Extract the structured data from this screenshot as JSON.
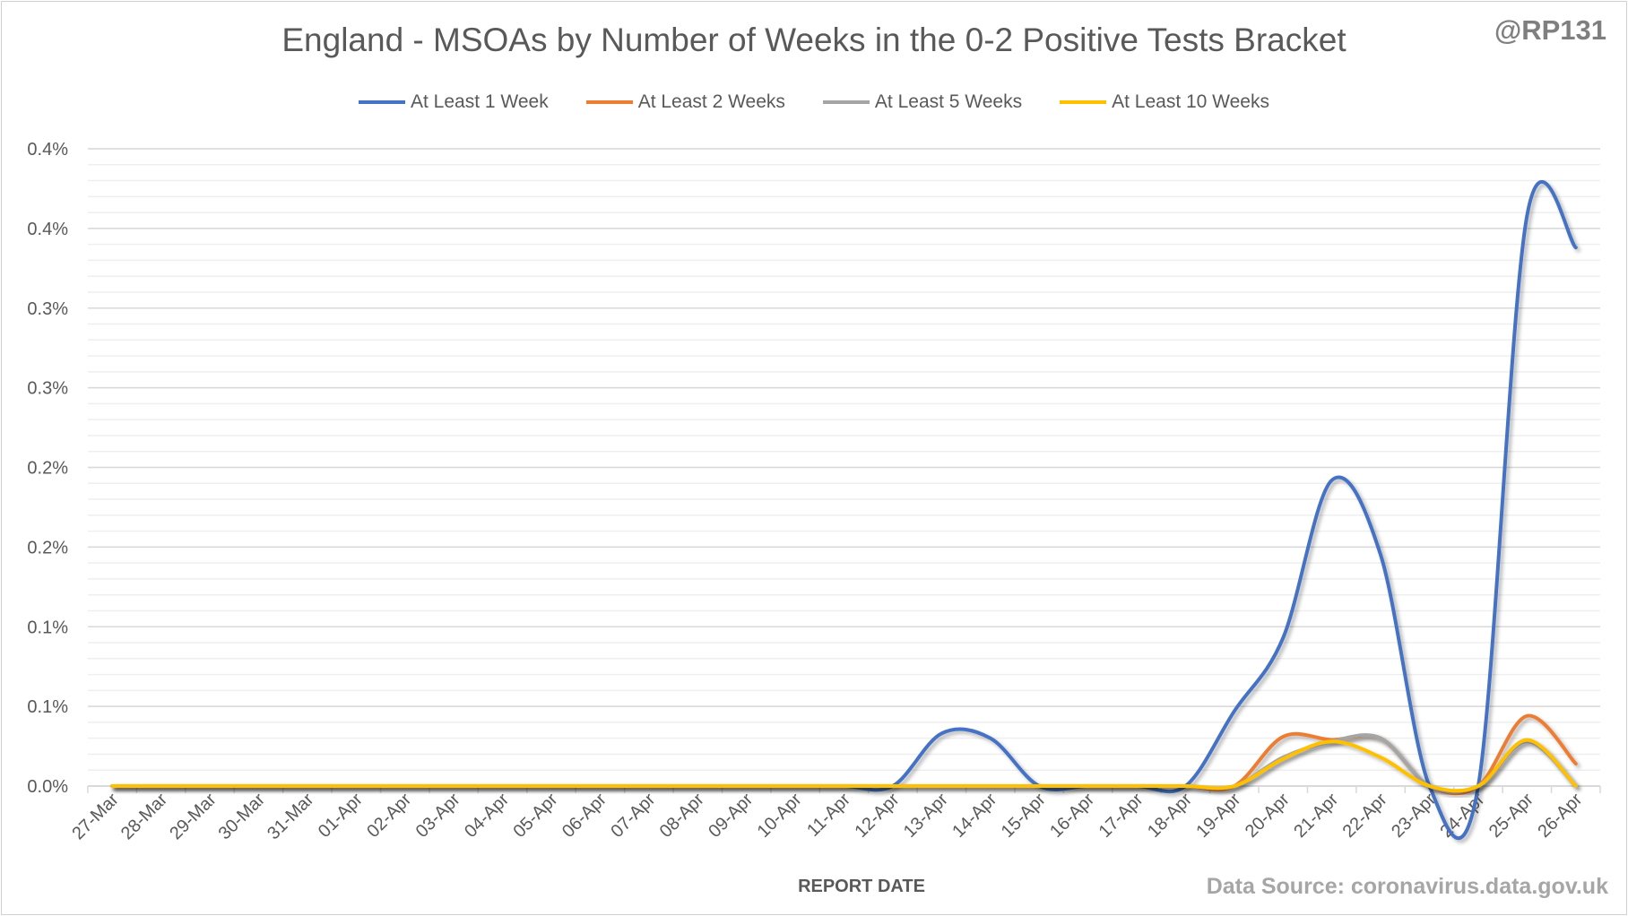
{
  "chart_data": {
    "type": "line",
    "title": "England - MSOAs by Number of Weeks in the 0-2 Positive Tests Bracket",
    "watermark": "@RP131",
    "xlabel": "REPORT DATE",
    "ylabel": "",
    "source": "Data Source: coronavirus.data.gov.uk",
    "ylim": [
      0,
      0.4
    ],
    "y_unit": "%",
    "y_ticks": [
      0,
      0.05,
      0.1,
      0.15,
      0.2,
      0.25,
      0.3,
      0.35,
      0.4
    ],
    "y_tick_labels": [
      "0.0%",
      "0.1%",
      "0.1%",
      "0.2%",
      "0.2%",
      "0.3%",
      "0.3%",
      "0.4%",
      "0.4%"
    ],
    "grid": "major and minor horizontal",
    "legend_position": "top",
    "smoothed": true,
    "categories": [
      "27-Mar",
      "28-Mar",
      "29-Mar",
      "30-Mar",
      "31-Mar",
      "01-Apr",
      "02-Apr",
      "03-Apr",
      "04-Apr",
      "05-Apr",
      "06-Apr",
      "07-Apr",
      "08-Apr",
      "09-Apr",
      "10-Apr",
      "11-Apr",
      "12-Apr",
      "13-Apr",
      "14-Apr",
      "15-Apr",
      "16-Apr",
      "17-Apr",
      "18-Apr",
      "19-Apr",
      "20-Apr",
      "21-Apr",
      "22-Apr",
      "23-Apr",
      "24-Apr",
      "25-Apr",
      "26-Apr"
    ],
    "series": [
      {
        "name": "At Least 1 Week",
        "color": "#4472c4",
        "values": [
          0,
          0,
          0,
          0,
          0,
          0,
          0,
          0,
          0,
          0,
          0,
          0,
          0,
          0,
          0,
          0,
          0,
          0.033,
          0.03,
          0,
          0,
          0,
          0,
          0.047,
          0.093,
          0.192,
          0.145,
          0,
          0,
          0.358,
          0.338
        ]
      },
      {
        "name": "At Least 2 Weeks",
        "color": "#ed7d31",
        "values": [
          0,
          0,
          0,
          0,
          0,
          0,
          0,
          0,
          0,
          0,
          0,
          0,
          0,
          0,
          0,
          0,
          0,
          0,
          0,
          0,
          0,
          0,
          0,
          0,
          0.031,
          0.029,
          0.03,
          0,
          0,
          0.044,
          0.014
        ]
      },
      {
        "name": "At Least 5 Weeks",
        "color": "#a5a5a5",
        "values": [
          0,
          0,
          0,
          0,
          0,
          0,
          0,
          0,
          0,
          0,
          0,
          0,
          0,
          0,
          0,
          0,
          0,
          0,
          0,
          0,
          0,
          0,
          0,
          0,
          0.018,
          0.028,
          0.03,
          0,
          0,
          0.028,
          0
        ]
      },
      {
        "name": "At Least 10 Weeks",
        "color": "#ffc000",
        "values": [
          0,
          0,
          0,
          0,
          0,
          0,
          0,
          0,
          0,
          0,
          0,
          0,
          0,
          0,
          0,
          0,
          0,
          0,
          0,
          0,
          0,
          0,
          0,
          0,
          0.017,
          0.028,
          0.018,
          0,
          0,
          0.029,
          0
        ]
      }
    ]
  }
}
